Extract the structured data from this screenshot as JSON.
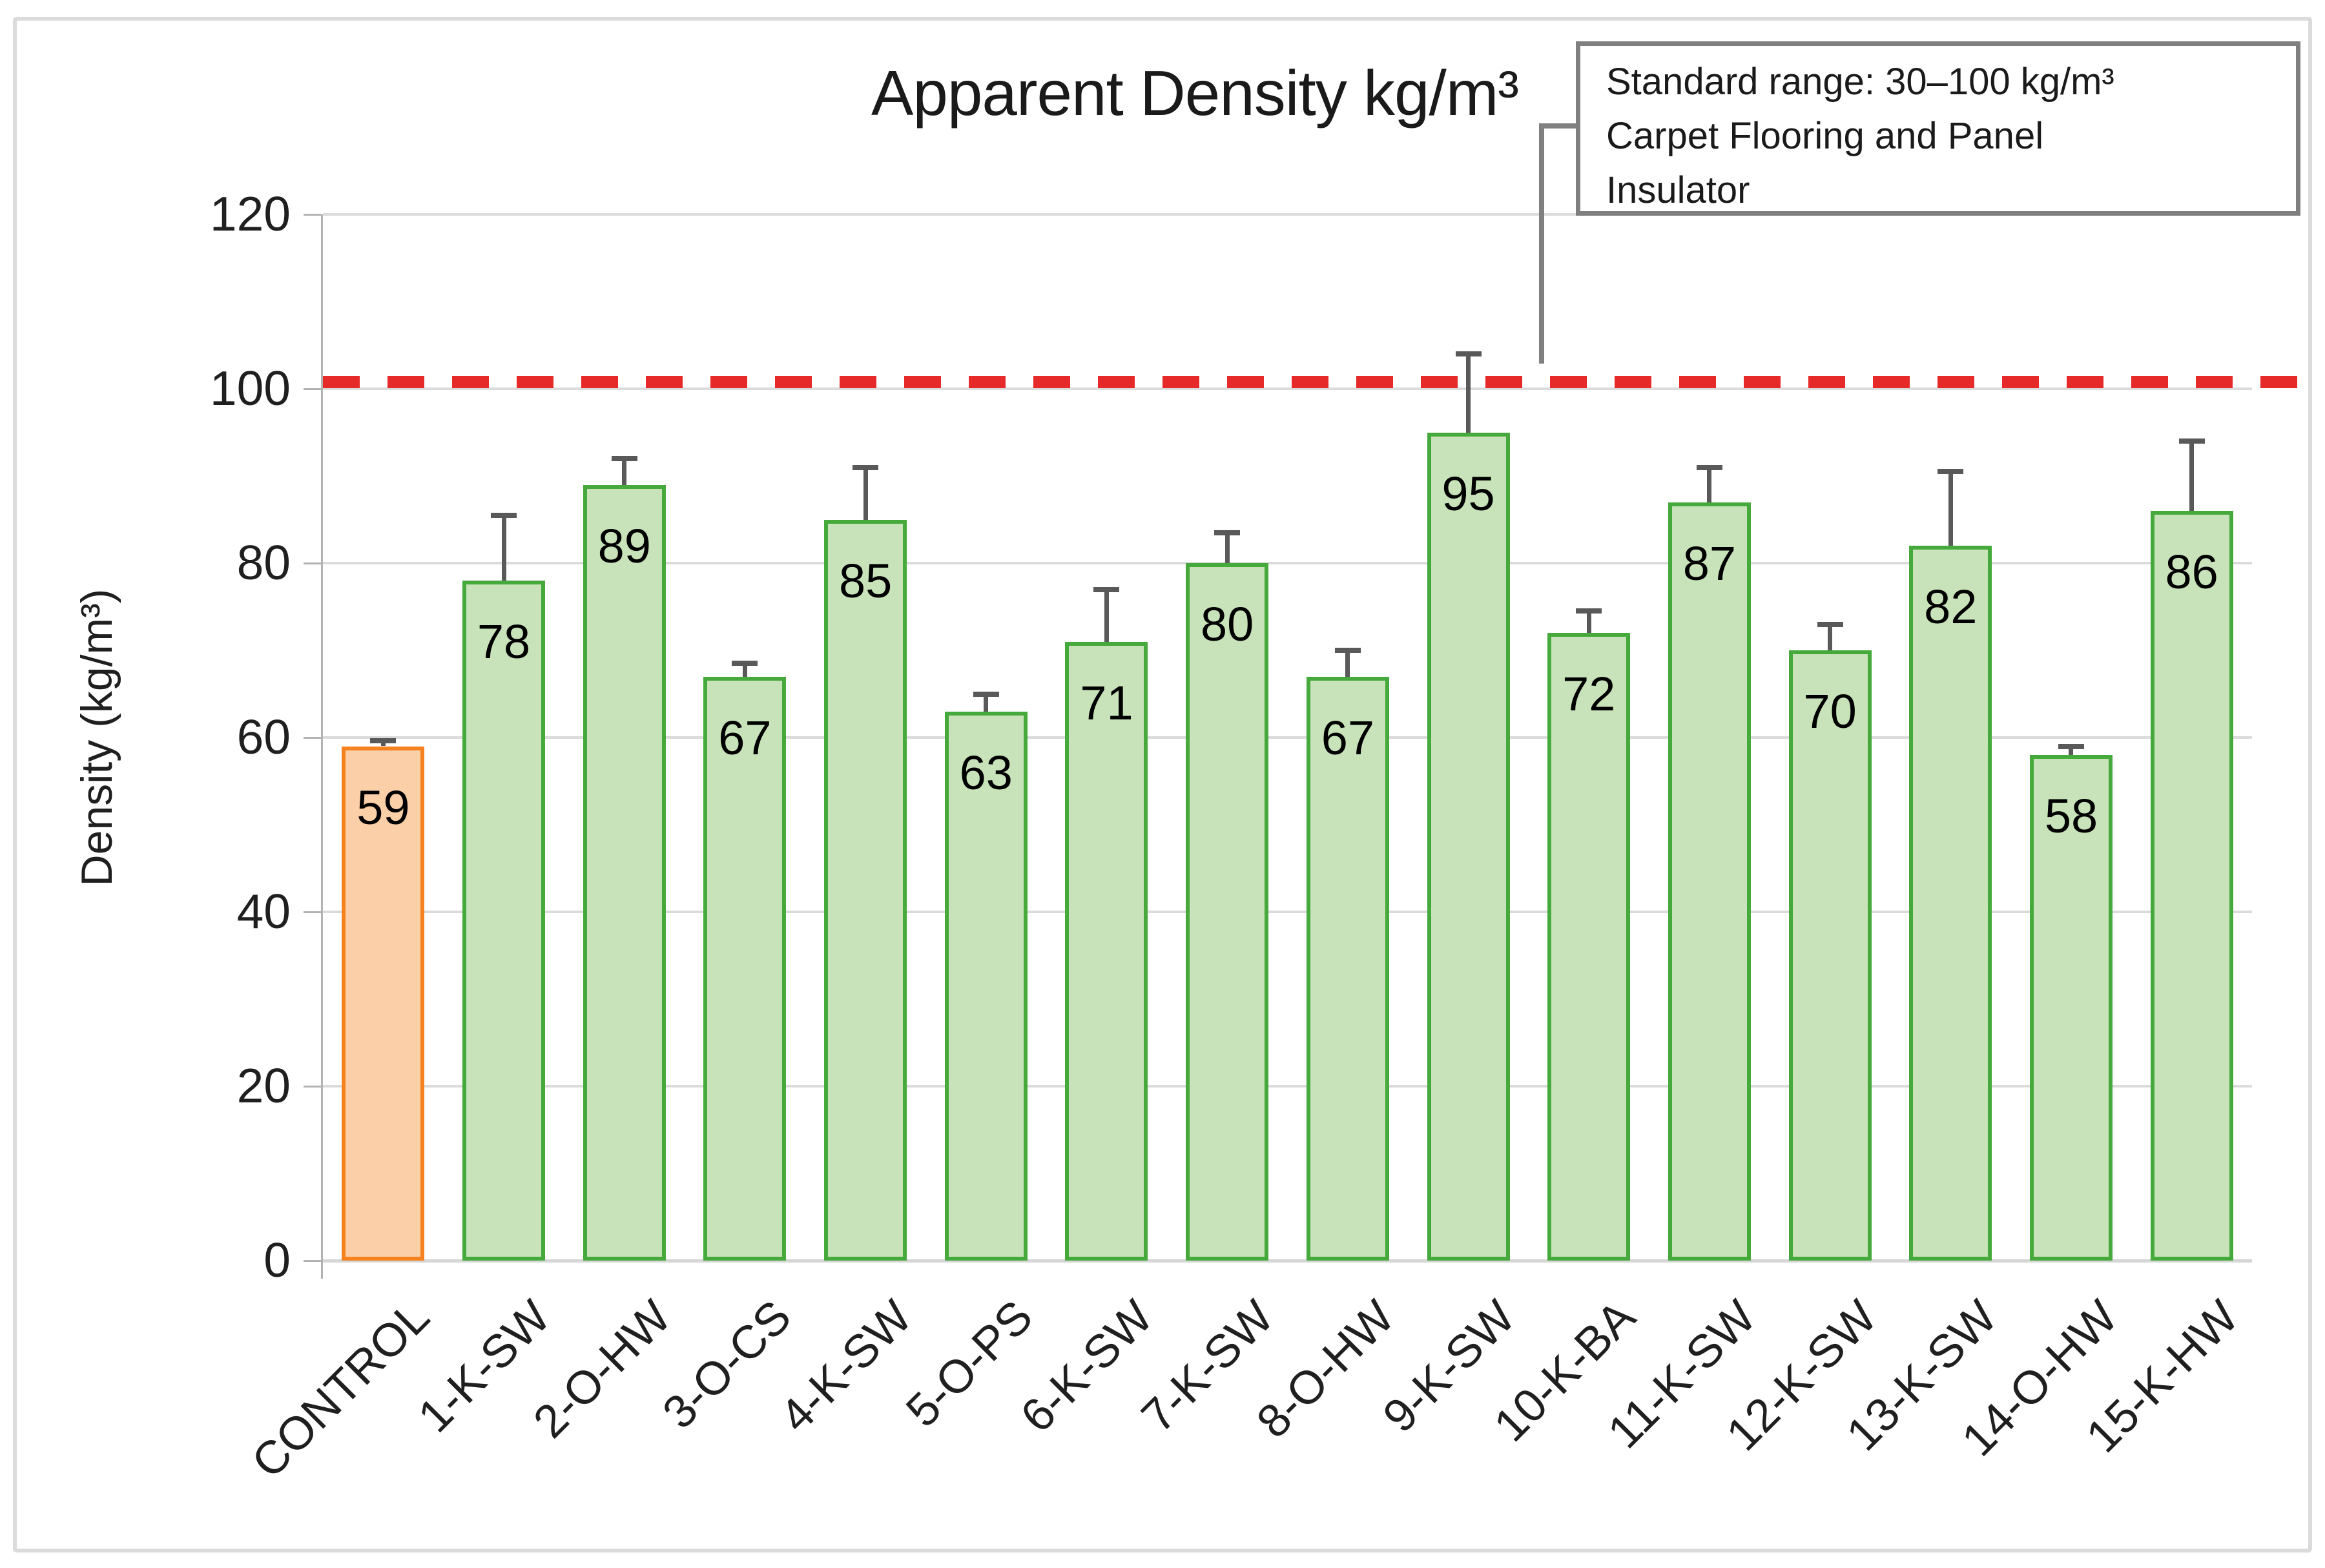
{
  "title": "Apparent Density kg/m³",
  "annotation": {
    "line1": "Standard range: 30–100 kg/m³",
    "line2": "Carpet Flooring and Panel",
    "line3": "Insulator"
  },
  "chart_data": {
    "type": "bar",
    "title": "Apparent Density kg/m³",
    "xlabel": "",
    "ylabel": "Density (kg/m³)",
    "ylim": [
      0,
      120
    ],
    "yticks": [
      0,
      20,
      40,
      60,
      80,
      100,
      120
    ],
    "grid": true,
    "legend": false,
    "categories": [
      "CONTROL",
      "1-K-SW",
      "2-O-HW",
      "3-O-CS",
      "4-K-SW",
      "5-O-PS",
      "6-K-SW",
      "7-K-SW",
      "8-O-HW",
      "9-K-SW",
      "10-K-BA",
      "11-K-SW",
      "12-K-SW",
      "13-K-SW",
      "14-O-HW",
      "15-K-HW"
    ],
    "values": [
      59,
      78,
      89,
      67,
      85,
      63,
      71,
      80,
      67,
      95,
      72,
      87,
      70,
      82,
      58,
      86
    ],
    "error_plus": [
      0.6,
      7.5,
      3,
      1.5,
      6,
      2,
      6,
      3.5,
      3,
      9,
      2.5,
      4,
      3,
      8.5,
      1,
      8
    ],
    "control_index": 0,
    "reference_line": {
      "value": 100.8,
      "style": "dashed",
      "color": "#e62a2a"
    },
    "colors": {
      "control_fill": "#fbcfa8",
      "control_border": "#f5821e",
      "bar_fill": "#c8e3b9",
      "bar_border": "#46a93c",
      "error_bar": "#595959",
      "gridline": "#dbdbdb",
      "reference": "#e62a2a"
    }
  }
}
